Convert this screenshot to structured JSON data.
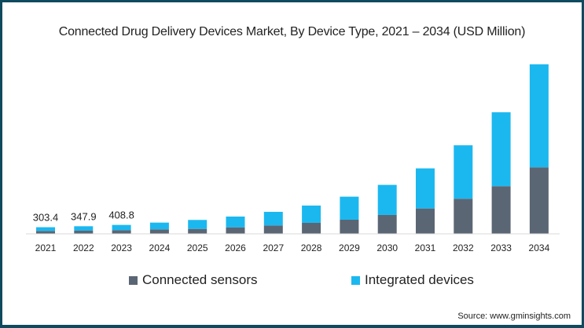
{
  "colors": {
    "connected_sensors": "#5b6674",
    "integrated_devices": "#1bb8f0",
    "axis": "#d9d9d9",
    "text": "#222222",
    "frame": "#0f4a5e"
  },
  "source": "Source: www.gminsights.com",
  "chart_data": {
    "type": "bar",
    "stacked": true,
    "title": "Connected Drug Delivery Devices Market, By Device Type, 2021 – 2034 (USD Million)",
    "xlabel": "",
    "ylabel": "",
    "ylim": [
      0,
      8000
    ],
    "grid": false,
    "legend_position": "bottom",
    "categories": [
      "2021",
      "2022",
      "2023",
      "2024",
      "2025",
      "2026",
      "2027",
      "2028",
      "2029",
      "2030",
      "2031",
      "2032",
      "2033",
      "2034"
    ],
    "series": [
      {
        "name": "Connected sensors",
        "values": [
          130,
          145,
          165,
          205,
          227,
          299,
          385,
          504,
          648,
          864,
          1163,
          1609,
          2185,
          3049
        ]
      },
      {
        "name": "Integrated devices",
        "values": [
          173.4,
          202.9,
          243.8,
          310,
          410,
          493,
          623,
          792,
          1055,
          1379,
          1836,
          2448,
          3384,
          4716
        ]
      }
    ],
    "data_labels": [
      {
        "category": "2021",
        "text": "303.4"
      },
      {
        "category": "2022",
        "text": "347.9"
      },
      {
        "category": "2023",
        "text": "408.8"
      }
    ]
  }
}
